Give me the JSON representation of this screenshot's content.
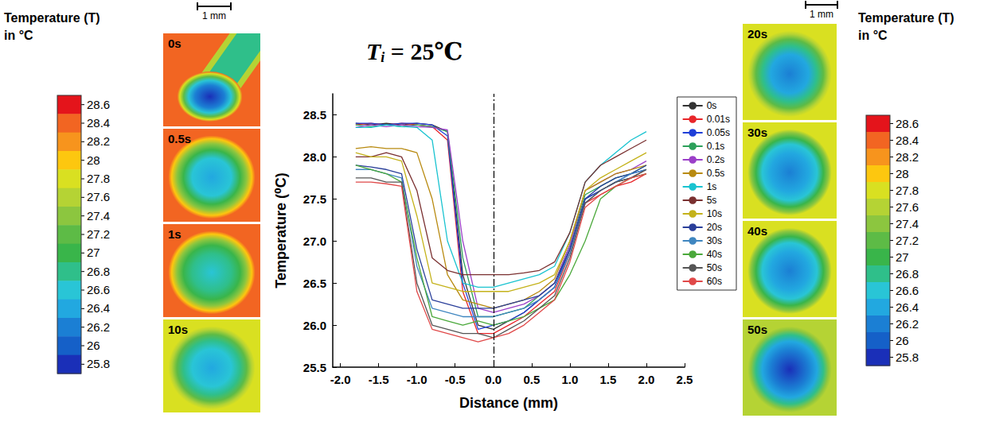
{
  "chart_data": {
    "type": "line",
    "title": {
      "symbol": "T",
      "subscript": "i",
      "text": " = 25℃"
    },
    "x_label": "Distance (mm)",
    "y_label": "Temperature (⁰C)",
    "x": [
      -1.8,
      -1.6,
      -1.4,
      -1.2,
      -1.0,
      -0.8,
      -0.6,
      -0.4,
      -0.2,
      0,
      0.2,
      0.4,
      0.6,
      0.8,
      1.0,
      1.2,
      1.4,
      1.6,
      1.8,
      2.0
    ],
    "series": [
      {
        "name": "0s",
        "color": "#333333",
        "values": [
          28.4,
          28.38,
          28.4,
          28.38,
          28.4,
          28.38,
          28.3,
          26.6,
          26.0,
          25.95,
          26.05,
          26.15,
          26.3,
          26.45,
          26.9,
          27.5,
          27.6,
          27.7,
          27.75,
          27.85
        ]
      },
      {
        "name": "0.01s",
        "color": "#e8262a",
        "values": [
          28.38,
          28.4,
          28.38,
          28.4,
          28.38,
          28.36,
          28.2,
          26.4,
          25.9,
          25.9,
          26.0,
          26.1,
          26.25,
          26.4,
          26.85,
          27.45,
          27.55,
          27.65,
          27.7,
          27.8
        ]
      },
      {
        "name": "0.05s",
        "color": "#1f3fd8",
        "values": [
          28.4,
          28.4,
          28.38,
          28.4,
          28.4,
          28.38,
          28.25,
          26.5,
          25.95,
          26.0,
          26.05,
          26.15,
          26.3,
          26.45,
          26.9,
          27.5,
          27.6,
          27.7,
          27.8,
          27.85
        ]
      },
      {
        "name": "0.1s",
        "color": "#2ca05a",
        "values": [
          28.38,
          28.36,
          28.38,
          28.36,
          28.38,
          28.36,
          28.3,
          26.8,
          26.1,
          26.1,
          26.15,
          26.2,
          26.35,
          26.5,
          26.95,
          27.55,
          27.65,
          27.75,
          27.8,
          27.9
        ]
      },
      {
        "name": "0.2s",
        "color": "#9b3fc8",
        "values": [
          28.35,
          28.38,
          28.36,
          28.38,
          28.36,
          28.35,
          28.32,
          27.0,
          26.2,
          26.15,
          26.2,
          26.25,
          26.35,
          26.5,
          26.95,
          27.6,
          27.7,
          27.8,
          27.85,
          27.95
        ]
      },
      {
        "name": "0.5s",
        "color": "#b88a10",
        "values": [
          28.1,
          28.12,
          28.1,
          28.1,
          28.05,
          27.5,
          26.6,
          26.3,
          26.25,
          26.2,
          26.25,
          26.3,
          26.4,
          26.55,
          27.0,
          27.6,
          27.7,
          27.8,
          27.85,
          27.9
        ]
      },
      {
        "name": "1s",
        "color": "#19c3d0",
        "values": [
          28.35,
          28.35,
          28.38,
          28.36,
          28.35,
          28.2,
          27.0,
          26.5,
          26.45,
          26.45,
          26.5,
          26.55,
          26.6,
          26.7,
          27.1,
          27.7,
          27.9,
          28.05,
          28.2,
          28.3
        ]
      },
      {
        "name": "5s",
        "color": "#7a3030",
        "values": [
          28.0,
          28.0,
          28.05,
          28.0,
          27.6,
          26.8,
          26.65,
          26.6,
          26.6,
          26.6,
          26.6,
          26.62,
          26.65,
          26.75,
          27.1,
          27.7,
          27.9,
          28.0,
          28.1,
          28.2
        ]
      },
      {
        "name": "10s",
        "color": "#c4b21a",
        "values": [
          28.05,
          28.0,
          28.0,
          27.95,
          27.3,
          26.5,
          26.45,
          26.4,
          26.4,
          26.4,
          26.4,
          26.45,
          26.5,
          26.6,
          27.0,
          27.6,
          27.75,
          27.85,
          27.95,
          28.05
        ]
      },
      {
        "name": "20s",
        "color": "#2a3f9a",
        "values": [
          27.9,
          27.88,
          27.85,
          27.8,
          26.9,
          26.3,
          26.25,
          26.2,
          26.2,
          26.2,
          26.25,
          26.3,
          26.35,
          26.5,
          26.9,
          27.5,
          27.65,
          27.75,
          27.8,
          27.9
        ]
      },
      {
        "name": "30s",
        "color": "#3f86c0",
        "values": [
          27.85,
          27.85,
          27.8,
          27.75,
          26.7,
          26.2,
          26.15,
          26.1,
          26.1,
          26.1,
          26.15,
          26.2,
          26.3,
          26.45,
          26.85,
          27.45,
          27.6,
          27.7,
          27.8,
          27.85
        ]
      },
      {
        "name": "40s",
        "color": "#4aa83a",
        "values": [
          27.9,
          27.85,
          27.8,
          27.7,
          26.8,
          26.1,
          26.05,
          26.0,
          26.05,
          26.0,
          26.05,
          26.1,
          26.2,
          26.3,
          26.6,
          27.0,
          27.5,
          27.65,
          27.75,
          27.8
        ]
      },
      {
        "name": "50s",
        "color": "#555555",
        "values": [
          27.75,
          27.75,
          27.7,
          27.7,
          26.5,
          26.0,
          25.95,
          25.9,
          25.9,
          25.85,
          25.95,
          26.05,
          26.2,
          26.35,
          26.8,
          27.45,
          27.6,
          27.7,
          27.75,
          27.85
        ]
      },
      {
        "name": "60s",
        "color": "#e04848",
        "values": [
          27.7,
          27.7,
          27.68,
          27.65,
          26.4,
          25.95,
          25.9,
          25.85,
          25.8,
          25.85,
          25.9,
          26.0,
          26.15,
          26.3,
          26.75,
          27.4,
          27.55,
          27.65,
          27.75,
          27.8
        ]
      }
    ],
    "xlim": [
      -2.1,
      2.5
    ],
    "xticks": [
      {
        "value": -2,
        "label": "-2.0"
      },
      -1.5,
      {
        "value": -1,
        "label": "-1.0"
      },
      -0.5,
      {
        "value": 0,
        "label": "0.0"
      },
      0.5,
      {
        "value": 1,
        "label": "1.0"
      },
      1.5,
      {
        "value": 2,
        "label": "2.0"
      },
      2.5
    ],
    "ylim": [
      25.5,
      28.75
    ],
    "yticks": [
      25.5,
      {
        "value": 26,
        "label": "26.0"
      },
      26.5,
      {
        "value": 27,
        "label": "27.0"
      },
      27.5,
      {
        "value": 28,
        "label": "28.0"
      },
      28.5
    ],
    "grid": false,
    "legend": "upper right",
    "reference_lines": [
      {
        "x": 0,
        "line_style": "dashdot"
      }
    ]
  },
  "thermal_images": {
    "left": {
      "scale_bar": "1 mm",
      "panels": [
        {
          "label": "0s",
          "background": 28.4,
          "center": 25.8,
          "probe": true
        },
        {
          "label": "0.5s",
          "background": 28.3,
          "center": 26.3
        },
        {
          "label": "1s",
          "background": 28.3,
          "center": 26.5
        },
        {
          "label": "10s",
          "background": 27.9,
          "center": 26.4
        }
      ]
    },
    "right": {
      "scale_bar": "1 mm",
      "panels": [
        {
          "label": "20s",
          "background": 27.9,
          "center": 26.2
        },
        {
          "label": "30s",
          "background": 27.8,
          "center": 26.2
        },
        {
          "label": "40s",
          "background": 27.8,
          "center": 26.1
        },
        {
          "label": "50s",
          "background": 27.7,
          "center": 25.9
        }
      ]
    }
  },
  "colorbars": [
    {
      "title": [
        "Temperature (T)",
        "in °C"
      ],
      "range": [
        25.7,
        28.7
      ],
      "ticks": [
        28.6,
        28.4,
        28.2,
        28,
        27.8,
        27.6,
        27.4,
        27.2,
        27,
        26.8,
        26.6,
        26.4,
        26.2,
        26,
        25.8
      ],
      "colors": [
        "#e4141b",
        "#f26522",
        "#f7941d",
        "#fdc70f",
        "#d9e021",
        "#b5d334",
        "#8cc63f",
        "#5dbb46",
        "#39b54a",
        "#2fbf8a",
        "#29c5d6",
        "#22a8e0",
        "#1b7fd4",
        "#1560c8",
        "#1a2fb8"
      ]
    },
    {
      "title": [
        "Temperature (T)",
        "in °C"
      ],
      "range": [
        25.7,
        28.7
      ],
      "ticks": [
        28.6,
        28.4,
        28.2,
        28,
        27.8,
        27.6,
        27.4,
        27.2,
        27,
        26.8,
        26.6,
        26.4,
        26.2,
        26,
        25.8
      ],
      "colors": [
        "#e4141b",
        "#f26522",
        "#f7941d",
        "#fdc70f",
        "#d9e021",
        "#b5d334",
        "#8cc63f",
        "#5dbb46",
        "#39b54a",
        "#2fbf8a",
        "#29c5d6",
        "#22a8e0",
        "#1b7fd4",
        "#1560c8",
        "#1a2fb8"
      ]
    }
  ]
}
